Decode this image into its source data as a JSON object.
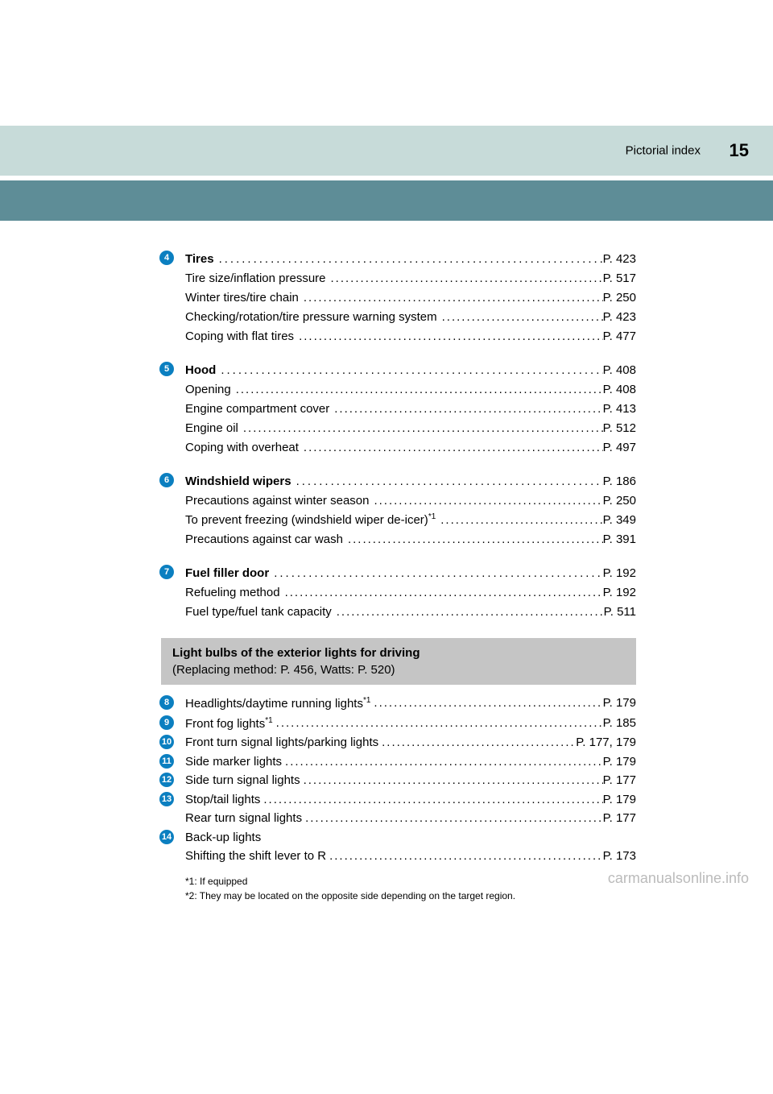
{
  "header": {
    "title": "Pictorial index",
    "page_number": "15"
  },
  "sections": [
    {
      "num": "4",
      "main": {
        "label_bold": "Tires ",
        "pageref": "P. 423"
      },
      "subs": [
        {
          "label": "Tire size/inflation pressure ",
          "pageref": "P. 517"
        },
        {
          "label": "Winter tires/tire chain ",
          "pageref": "P. 250"
        },
        {
          "label": "Checking/rotation/tire pressure warning system ",
          "pageref": "P. 423"
        },
        {
          "label": "Coping with flat tires",
          "pageref": "P. 477"
        }
      ]
    },
    {
      "num": "5",
      "main": {
        "label_bold": "Hood ",
        "pageref": "P. 408"
      },
      "subs": [
        {
          "label": "Opening ",
          "pageref": "P. 408"
        },
        {
          "label": "Engine compartment cover",
          "pageref": "P. 413"
        },
        {
          "label": "Engine oil ",
          "pageref": "P. 512"
        },
        {
          "label": "Coping with overheat ",
          "pageref": "P. 497"
        }
      ]
    },
    {
      "num": "6",
      "main": {
        "label_bold": "Windshield wipers",
        "pageref": "P. 186"
      },
      "subs": [
        {
          "label": "Precautions against winter season ",
          "pageref": "P. 250"
        },
        {
          "label": "To prevent freezing (windshield wiper de-icer)",
          "suffix": "*1",
          "pageref": "P. 349"
        },
        {
          "label": "Precautions against car wash ",
          "pageref": "P. 391"
        }
      ]
    },
    {
      "num": "7",
      "main": {
        "label_bold": "Fuel filler door ",
        "pageref": "P. 192"
      },
      "subs": [
        {
          "label": "Refueling method ",
          "pageref": "P. 192"
        },
        {
          "label": "Fuel type/fuel tank capacity ",
          "pageref": "P. 511"
        }
      ]
    }
  ],
  "note_box": {
    "title": "Light bulbs of the exterior lights for driving",
    "subtitle": "(Replacing method: P. 456, Watts: P. 520)"
  },
  "light_items": [
    {
      "num": "8",
      "label": "Headlights/daytime running lights",
      "suffix": "*1",
      "pageref": "P. 179"
    },
    {
      "num": "9",
      "label": "Front fog lights",
      "suffix": "*1",
      "pageref": "P. 185"
    },
    {
      "num": "10",
      "label": "Front turn signal lights/parking lights",
      "pageref": "P. 177, 179"
    },
    {
      "num": "11",
      "label": "Side marker lights",
      "pageref": "P. 179"
    },
    {
      "num": "12",
      "label": "Side turn signal lights",
      "pageref": "P. 177"
    },
    {
      "num": "13",
      "label": "Stop/tail lights",
      "pageref": "P. 179"
    },
    {
      "num": "13b",
      "label_indent": "Rear turn signal lights",
      "pageref": "P. 177"
    },
    {
      "num": "14",
      "label": "Back-up lights",
      "pageref": ""
    },
    {
      "num": "14b",
      "label_indent": "Shifting the shift lever to R",
      "pageref": "P. 173"
    }
  ],
  "footnotes": [
    "*1: If equipped",
    "*2: They may be located on the opposite side depending on the target region."
  ],
  "watermark": "carmanualsonline.info"
}
